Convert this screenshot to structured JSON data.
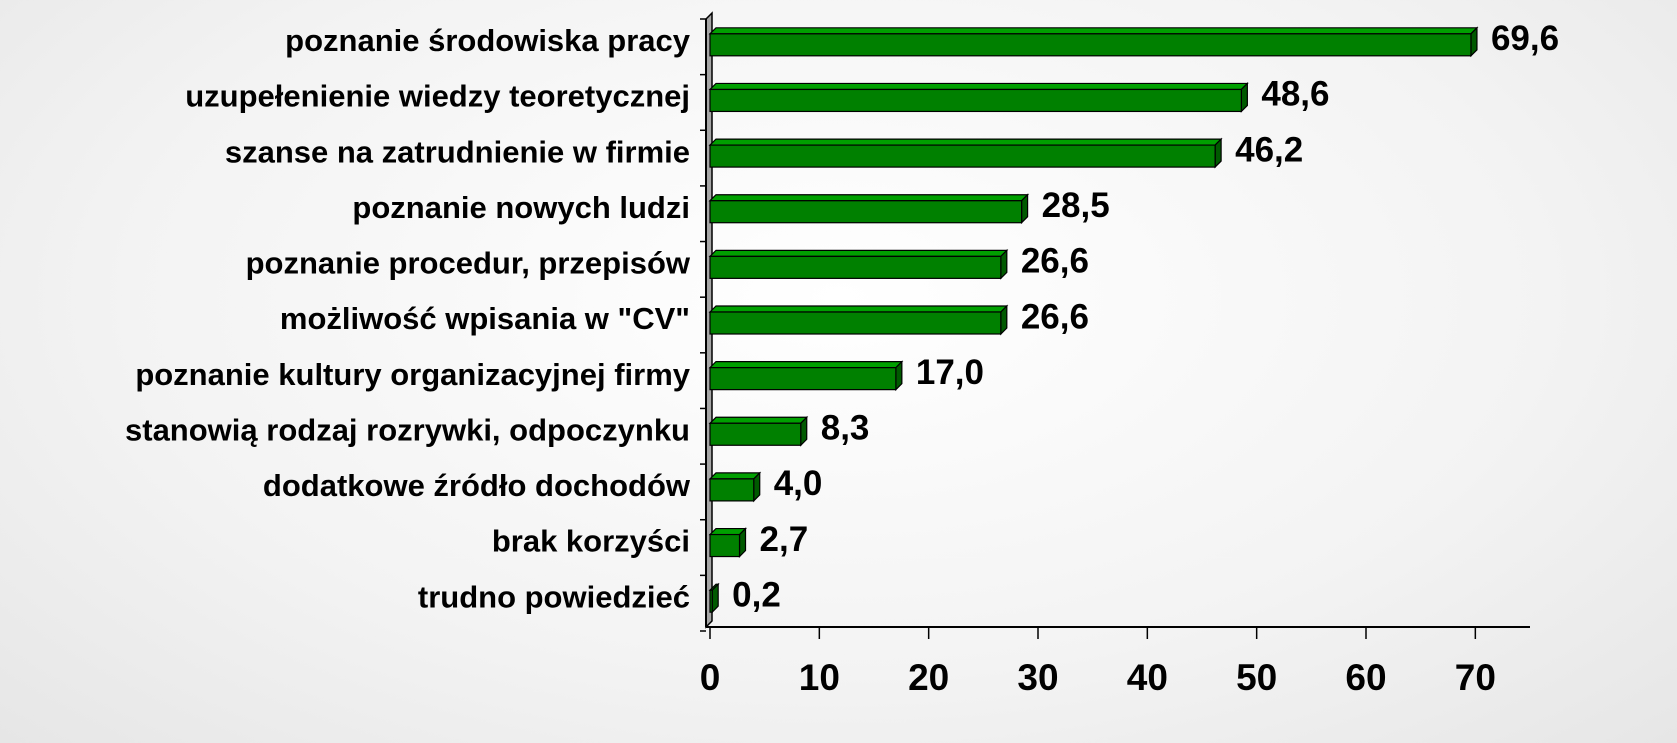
{
  "chart_data": {
    "type": "barh",
    "categories": [
      "poznanie środowiska pracy",
      "uzupełenienie wiedzy teoretycznej",
      "szanse na zatrudnienie w firmie",
      "poznanie nowych ludzi",
      "poznanie procedur, przepisów",
      "możliwość wpisania w \"CV\"",
      "poznanie kultury organizacyjnej firmy",
      "stanowią rodzaj rozrywki, odpoczynku",
      "dodatkowe źródło dochodów",
      "brak korzyści",
      "trudno powiedzieć"
    ],
    "values": [
      69.6,
      48.6,
      46.2,
      28.5,
      26.6,
      26.6,
      17.0,
      8.3,
      4.0,
      2.7,
      0.2
    ],
    "value_labels": [
      "69,6",
      "48,6",
      "46,2",
      "28,5",
      "26,6",
      "26,6",
      "17,0",
      "8,3",
      "4,0",
      "2,7",
      "0,2"
    ],
    "color": "#008000",
    "xlim": [
      0,
      75
    ],
    "xticks": [
      0,
      10,
      20,
      30,
      40,
      50,
      60,
      70
    ]
  }
}
